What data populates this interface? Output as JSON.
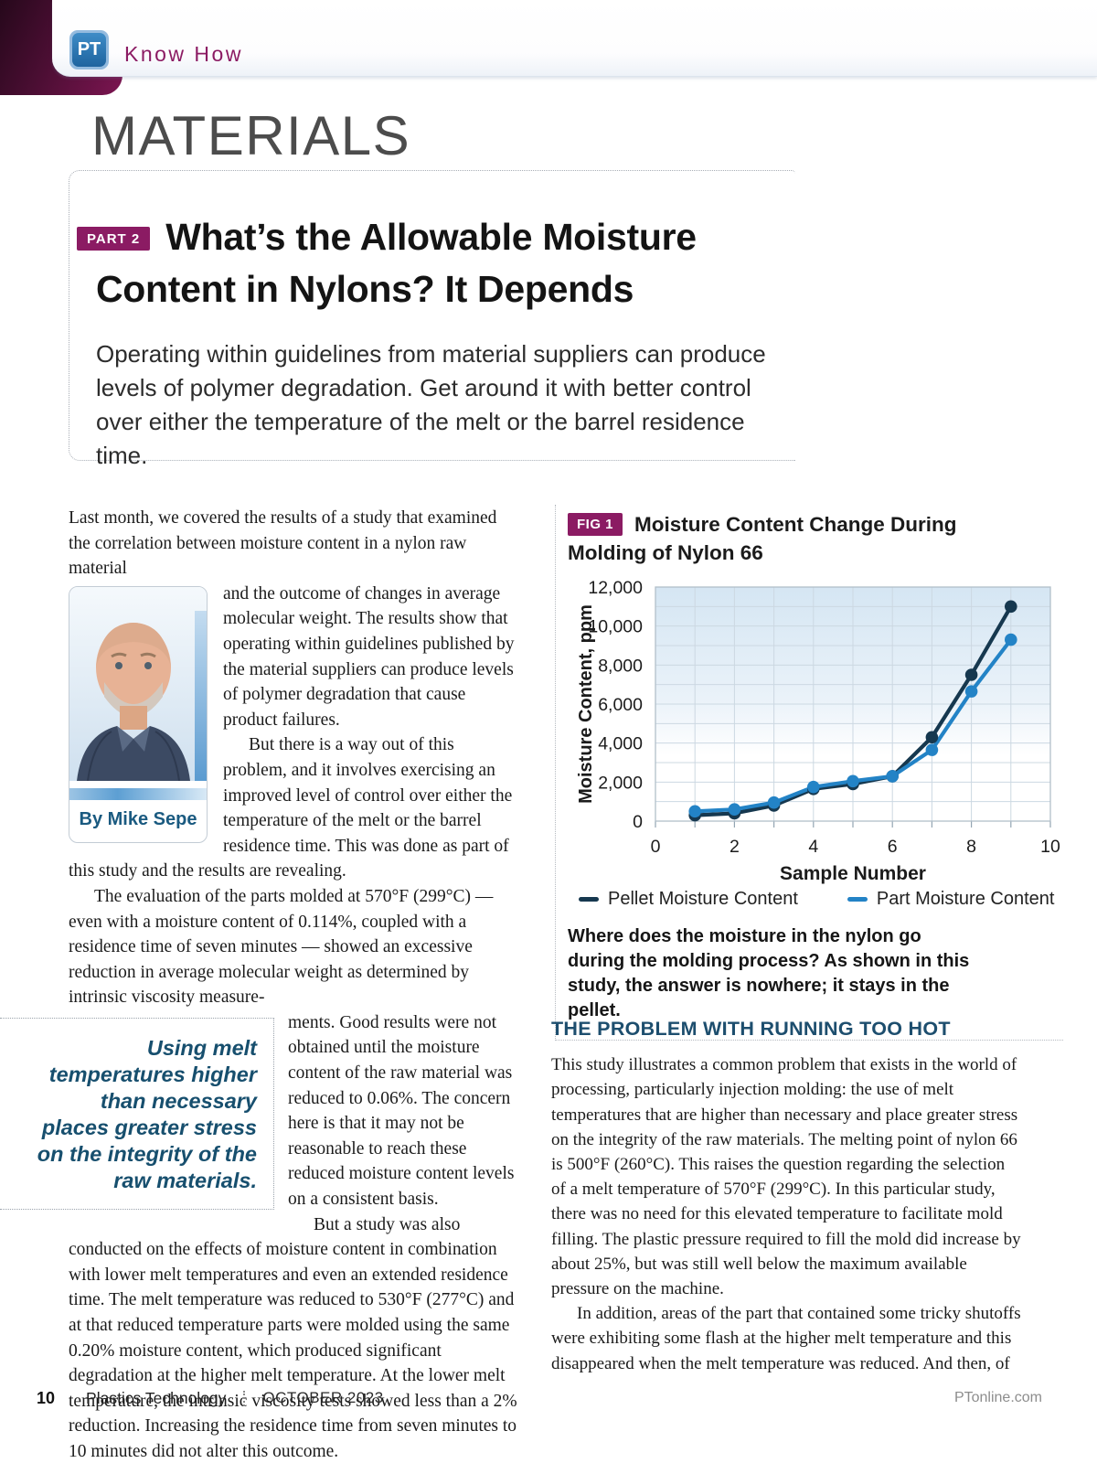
{
  "header": {
    "logo_text": "PT",
    "section_label": "Know How"
  },
  "kicker": "MATERIALS",
  "article": {
    "part_badge": "PART 2",
    "title_line1": "What’s the Allowable Moisture",
    "title_line2": "Content in Nylons? It Depends",
    "standfirst": "Operating within guidelines from material suppliers can produce levels of polymer degradation. Get around it with better control over either the temperature of the melt or the barrel residence time."
  },
  "author": {
    "byline": "By Mike Sepe"
  },
  "left_column": {
    "p1a": "Last month, we covered the results of a study that examined the correlation between moisture content in a nylon raw material",
    "p1b": "and the outcome of changes in average molecular weight. The results show that operating within guidelines published by the material suppliers can produce levels of polymer degradation that cause product failures.",
    "p2": "But there is a way out of this problem, and it involves exercising an improved level of control over either the temperature of the melt or the barrel residence time. This was done as part of this study and the results are revealing.",
    "p3a": "The evaluation of the parts molded at 570°F (299°C) — even with a moisture content of 0.114%, coupled with a residence time of seven minutes — showed an excessive reduction in average molecular weight as determined by intrinsic viscosity measure-",
    "pull_quote": "Using melt temperatures higher than necessary places greater stress on the integrity of the raw materials.",
    "p3b": "ments. Good results were not obtained until the moisture content of the raw material was reduced to 0.06%. The concern here is that it may not be reasonable to reach these reduced moisture content levels on a consistent basis.",
    "p4": "But a study was also conducted on the effects of moisture content in combination with lower melt temperatures and even an extended residence time. The melt temperature was reduced to 530°F (277°C) and at that reduced temperature parts were molded using the same 0.20% moisture content, which produced significant degradation at the higher melt temperature. At the lower melt temperature, the intrinsic viscosity tests showed less than a 2% reduction. Increasing the residence time from seven minutes to 10 minutes did not alter this outcome."
  },
  "figure": {
    "badge": "FIG 1",
    "title_line1": "Moisture Content Change During",
    "title_line2": "Molding of Nylon 66",
    "caption": "Where does the moisture in the nylon go during the molding process? As shown in this study, the answer is nowhere; it stays in the pellet."
  },
  "chart_data": {
    "type": "line",
    "title": "Moisture Content Change During Molding of Nylon 66",
    "xlabel": "Sample Number",
    "ylabel": "Moisture Content, ppm",
    "xlim": [
      0,
      10
    ],
    "ylim": [
      0,
      12000
    ],
    "x_ticks": [
      0,
      2,
      4,
      6,
      8,
      10
    ],
    "y_ticks": [
      0,
      2000,
      4000,
      6000,
      8000,
      10000,
      12000
    ],
    "x_minor_step": 1,
    "y_minor_step": 1000,
    "grid": "on",
    "legend_position": "bottom",
    "x": [
      1,
      2,
      3,
      4,
      5,
      6,
      7,
      8,
      9
    ],
    "series": [
      {
        "name": "Pellet Moisture Content",
        "color": "#16384f",
        "values": [
          300,
          400,
          800,
          1650,
          1900,
          2300,
          4300,
          7500,
          11000
        ]
      },
      {
        "name": "Part Moisture Content",
        "color": "#2383c6",
        "values": [
          500,
          600,
          950,
          1750,
          2050,
          2300,
          3650,
          6650,
          9300
        ]
      }
    ]
  },
  "section2": {
    "heading": "THE PROBLEM WITH RUNNING TOO HOT",
    "p1": "This study illustrates a common problem that exists in the world of processing, particularly injection molding: the use of melt temperatures that are higher than necessary and place greater stress on the integrity of the raw materials. The melting point of nylon 66 is 500°F (260°C). This raises the question regarding the selection of a melt temperature of 570°F (299°C). In this particular study, there was no need for this elevated temperature to facilitate mold filling. The plastic pressure required to fill the mold did increase by about 25%, but was still well below the maximum available pressure on the machine.",
    "p2": "In addition, areas of the part that contained some tricky shutoffs were exhibiting some flash at the higher melt temperature and this disappeared when the melt temperature was reduced. And then, of"
  },
  "footer": {
    "page_number": "10",
    "magazine": "Plastics Technology",
    "issue": "OCTOBER 2023",
    "website": "PTonline.com"
  }
}
